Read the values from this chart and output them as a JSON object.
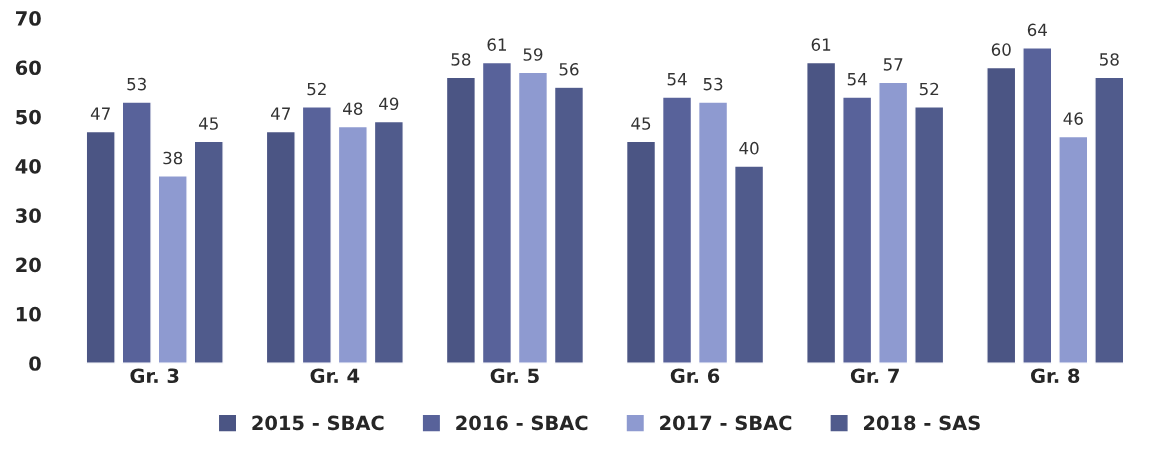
{
  "chart_data": {
    "type": "bar",
    "categories": [
      "Gr. 3",
      "Gr. 4",
      "Gr. 5",
      "Gr. 6",
      "Gr. 7",
      "Gr. 8"
    ],
    "series": [
      {
        "name": "2015 - SBAC",
        "color": "#4b5584",
        "values": [
          47,
          47,
          58,
          45,
          61,
          60
        ]
      },
      {
        "name": "2016 - SBAC",
        "color": "#58629a",
        "values": [
          53,
          52,
          61,
          54,
          54,
          64
        ]
      },
      {
        "name": "2017 - SBAC",
        "color": "#8e9ad0",
        "values": [
          38,
          48,
          59,
          53,
          57,
          46
        ]
      },
      {
        "name": "2018 - SAS",
        "color": "#505b8c",
        "values": [
          45,
          49,
          56,
          40,
          52,
          58
        ]
      }
    ],
    "ylim": [
      0,
      70
    ],
    "yticks": [
      0,
      10,
      20,
      30,
      40,
      50,
      60,
      70
    ],
    "data_labels": true,
    "grid": false,
    "legend": "bottom"
  }
}
